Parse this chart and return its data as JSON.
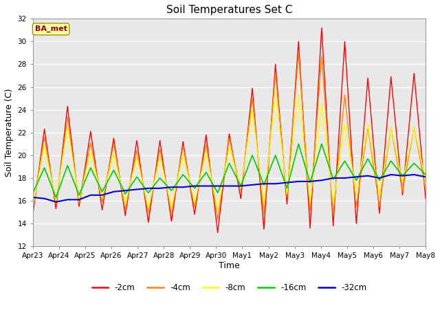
{
  "title": "Soil Temperatures Set C",
  "xlabel": "Time",
  "ylabel": "Soil Temperature (C)",
  "ylim": [
    12,
    32
  ],
  "yticks": [
    12,
    14,
    16,
    18,
    20,
    22,
    24,
    26,
    28,
    30,
    32
  ],
  "annotation": "BA_met",
  "fig_bg_color": "#ffffff",
  "plot_bg_color": "#e8e8e8",
  "legend_labels": [
    "-2cm",
    "-4cm",
    "-8cm",
    "-16cm",
    "-32cm"
  ],
  "legend_colors": [
    "#ff0000",
    "#ff8800",
    "#ffff00",
    "#00cc00",
    "#0000cc"
  ],
  "x_tick_labels": [
    "Apr 23",
    "Apr 24",
    "Apr 25",
    "Apr 26",
    "Apr 27",
    "Apr 28",
    "Apr 29",
    "Apr 30",
    "May 1",
    "May 2",
    "May 3",
    "May 4",
    "May 5",
    "May 6",
    "May 7",
    "May 8"
  ],
  "series_2cm": [
    14.8,
    22.3,
    15.3,
    24.3,
    15.5,
    22.1,
    15.2,
    21.5,
    14.7,
    21.3,
    14.1,
    21.3,
    14.2,
    21.2,
    14.8,
    21.8,
    13.2,
    21.9,
    16.2,
    25.9,
    13.5,
    28.0,
    15.7,
    30.0,
    13.6,
    31.2,
    13.8,
    30.0,
    14.0,
    26.8,
    14.9,
    26.9,
    16.5,
    27.2,
    16.2
  ],
  "series_4cm": [
    15.3,
    21.6,
    15.7,
    23.3,
    15.8,
    21.1,
    15.9,
    21.0,
    15.2,
    20.4,
    14.9,
    20.5,
    14.8,
    20.8,
    15.4,
    21.0,
    14.4,
    21.5,
    16.9,
    25.0,
    14.8,
    27.2,
    16.3,
    29.0,
    15.1,
    28.7,
    14.8,
    25.3,
    15.5,
    22.5,
    15.5,
    22.5,
    16.8,
    22.5,
    17.0
  ],
  "series_8cm": [
    15.5,
    20.8,
    16.0,
    22.4,
    16.1,
    20.2,
    16.2,
    20.1,
    15.8,
    19.8,
    15.4,
    19.8,
    15.5,
    20.0,
    15.9,
    20.2,
    15.2,
    20.7,
    17.1,
    24.0,
    15.7,
    25.5,
    16.6,
    25.3,
    15.9,
    24.5,
    15.8,
    22.8,
    16.6,
    22.7,
    16.4,
    22.5,
    17.6,
    22.5,
    17.8
  ],
  "series_16cm": [
    16.7,
    18.9,
    16.3,
    19.1,
    16.5,
    18.9,
    16.8,
    18.7,
    16.6,
    18.1,
    16.7,
    18.0,
    16.9,
    18.3,
    17.1,
    18.5,
    16.7,
    19.3,
    17.3,
    20.0,
    17.4,
    20.0,
    17.1,
    21.0,
    17.6,
    21.0,
    17.9,
    19.5,
    17.8,
    19.7,
    17.8,
    19.5,
    18.2,
    19.3,
    18.3
  ],
  "series_32cm": [
    16.3,
    16.2,
    15.9,
    16.1,
    16.1,
    16.5,
    16.5,
    16.8,
    16.9,
    17.0,
    17.1,
    17.1,
    17.2,
    17.2,
    17.3,
    17.3,
    17.3,
    17.3,
    17.3,
    17.4,
    17.5,
    17.5,
    17.6,
    17.7,
    17.7,
    17.8,
    18.0,
    18.0,
    18.1,
    18.2,
    18.0,
    18.3,
    18.2,
    18.3,
    18.1
  ]
}
